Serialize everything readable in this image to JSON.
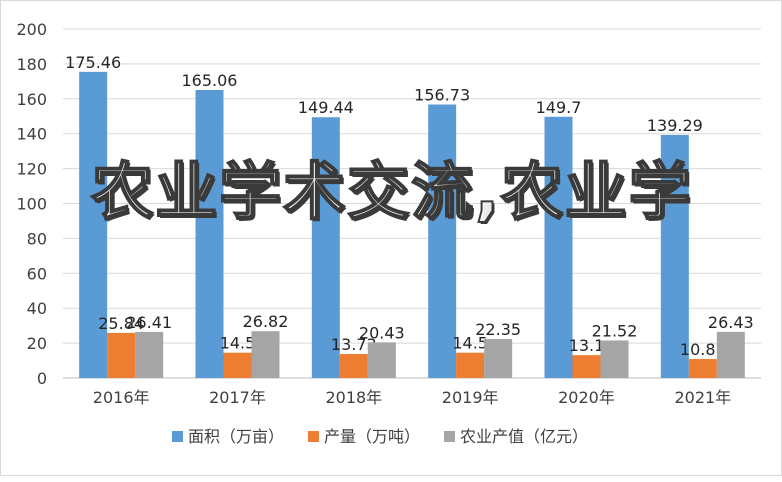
{
  "chart_data": {
    "type": "bar",
    "categories": [
      "2016年",
      "2017年",
      "2018年",
      "2019年",
      "2020年",
      "2021年"
    ],
    "series": [
      {
        "name": "面积（万亩）",
        "values": [
          175.46,
          165.06,
          149.44,
          156.73,
          149.7,
          139.29
        ],
        "labels": [
          "175.46",
          "165.06",
          "149.44",
          "156.73",
          "149.7",
          "139.29"
        ],
        "color": "#5b9bd5"
      },
      {
        "name": "产量（万吨）",
        "values": [
          25.84,
          14.5,
          13.73,
          14.5,
          13.1,
          10.87
        ],
        "labels": [
          "25.84",
          "14.5",
          "13.73",
          "14.5",
          "13.1",
          "10.87"
        ],
        "color": "#ed7d31"
      },
      {
        "name": "农业产值（亿元）",
        "values": [
          26.41,
          26.82,
          20.43,
          22.35,
          21.52,
          26.43
        ],
        "labels": [
          "26.41",
          "26.82",
          "20.43",
          "22.35",
          "21.52",
          "26.43"
        ],
        "color": "#a5a5a5"
      }
    ],
    "ylim": [
      0,
      200
    ],
    "yticks": [
      "0",
      "20",
      "40",
      "60",
      "80",
      "100",
      "120",
      "140",
      "160",
      "180",
      "200"
    ],
    "grid": true,
    "legend": "bottom"
  },
  "watermark": {
    "text": "农业学术交流,农业学"
  }
}
